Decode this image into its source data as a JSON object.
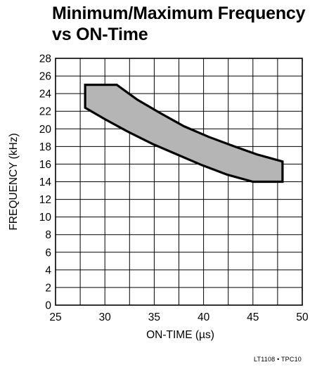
{
  "title_line1": "Minimum/Maximum Frequency",
  "title_line2": "vs ON-Time",
  "footnote": "LT1108 • TPC10",
  "chart_data": {
    "type": "area",
    "xlabel": "ON-TIME (µs)",
    "ylabel": "FREQUENCY (kHz)",
    "xlim": [
      25,
      50
    ],
    "ylim": [
      0,
      28
    ],
    "xticks": [
      25,
      30,
      35,
      40,
      45,
      50
    ],
    "yticks": [
      0,
      2,
      4,
      6,
      8,
      10,
      12,
      14,
      16,
      18,
      20,
      22,
      24,
      26,
      28
    ],
    "grid": true,
    "grid_step": {
      "x": 2.5,
      "y": 2
    },
    "fill_color": "#b5b5b5",
    "outline_color": "#000000",
    "region": {
      "upper_boundary": [
        {
          "x": 28,
          "y": 25
        },
        {
          "x": 31.2,
          "y": 25
        },
        {
          "x": 33.3,
          "y": 23.3
        },
        {
          "x": 35.6,
          "y": 21.8
        },
        {
          "x": 38,
          "y": 20.3
        },
        {
          "x": 40.5,
          "y": 19.1
        },
        {
          "x": 42.9,
          "y": 18.1
        },
        {
          "x": 45.4,
          "y": 17.1
        },
        {
          "x": 48,
          "y": 16.3
        }
      ],
      "lower_boundary": [
        {
          "x": 28,
          "y": 22.4
        },
        {
          "x": 30,
          "y": 21.1
        },
        {
          "x": 32.3,
          "y": 19.7
        },
        {
          "x": 34.8,
          "y": 18.3
        },
        {
          "x": 37.3,
          "y": 17.1
        },
        {
          "x": 39.8,
          "y": 15.9
        },
        {
          "x": 42.4,
          "y": 14.8
        },
        {
          "x": 45,
          "y": 14
        },
        {
          "x": 48,
          "y": 14
        }
      ]
    }
  }
}
